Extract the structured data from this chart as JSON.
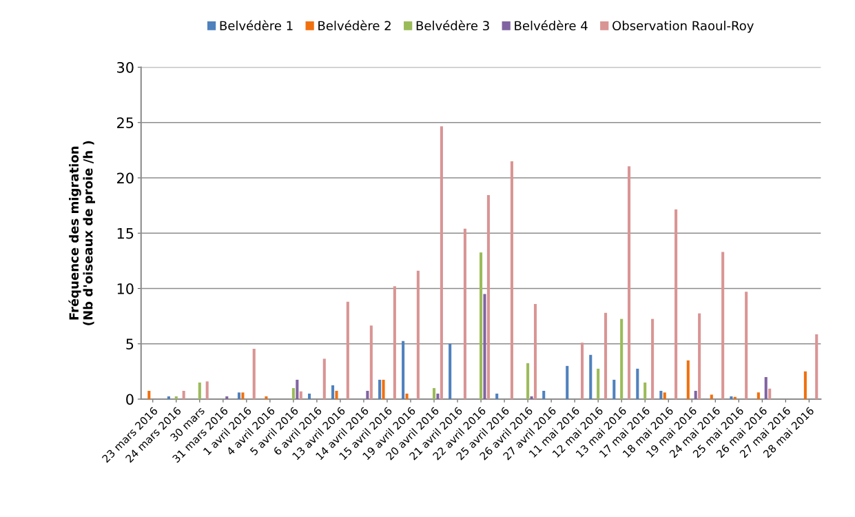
{
  "chart_data": {
    "type": "bar",
    "ylabel": "Fréquence des migration\n(Nb d'oiseaux de proie /h )",
    "categories": [
      "23 mars 2016",
      "24 mars 2016",
      "30 mars",
      "31 mars 2016",
      "1 avril 2016",
      "4 avril 2016",
      "5 avril 2016",
      "6 avril 2016",
      "13 avril 2016",
      "14 avril 2016",
      "15 avril 2016",
      "19 avril 2016",
      "20 avril 2016",
      "21 avril 2016",
      "22 avril 2016",
      "25 avril 2016",
      "26 avril 2016",
      "27 avril 2016",
      "11 mai 2016",
      "12 mai 2016",
      "13 mai 2016",
      "17 mai 2016",
      "18 mai 2016",
      "19 mai 2016",
      "24 mai 2016",
      "25 mai 2016",
      "26 mai 2016",
      "27 mai 2016",
      "28 mai 2016"
    ],
    "series": [
      {
        "name": "Belvédère 1",
        "color": "#4f81bd",
        "values": [
          0,
          0.25,
          0,
          0,
          0.6,
          0,
          0,
          0.5,
          1.25,
          0,
          1.75,
          5.25,
          0,
          5.0,
          0,
          0.5,
          0,
          0.75,
          3.0,
          4.0,
          1.75,
          2.75,
          0.75,
          0,
          0,
          0.25,
          0,
          0,
          0
        ]
      },
      {
        "name": "Belvédère 2",
        "color": "#f0700f",
        "values": [
          0.75,
          0,
          0,
          0,
          0.6,
          0.25,
          0,
          0,
          0.75,
          0,
          1.75,
          0.5,
          0,
          0,
          0,
          0,
          0,
          0,
          0,
          0,
          0,
          0,
          0.6,
          3.5,
          0.4,
          0.2,
          0.6,
          0,
          2.5
        ]
      },
      {
        "name": "Belvédère 3",
        "color": "#9bbb59",
        "values": [
          0,
          0.25,
          1.5,
          0,
          0,
          0,
          1.0,
          0,
          0,
          0,
          0,
          0,
          1.0,
          0,
          13.25,
          0,
          3.25,
          0,
          0,
          2.75,
          7.25,
          1.5,
          0,
          0,
          0,
          0,
          0,
          0,
          0
        ]
      },
      {
        "name": "Belvédère 4",
        "color": "#8064a2",
        "values": [
          0,
          0,
          0,
          0.25,
          0,
          0,
          1.75,
          0,
          0,
          0.75,
          0,
          0,
          0.5,
          0,
          9.5,
          0,
          0.25,
          0,
          0,
          0,
          0,
          0,
          0,
          0.75,
          0,
          0,
          2.0,
          0,
          0
        ]
      },
      {
        "name": "Observation Raoul-Roy",
        "color": "#d99594",
        "values": [
          0,
          0.75,
          1.6,
          0,
          4.55,
          0,
          0.7,
          3.65,
          8.8,
          6.65,
          10.2,
          11.6,
          24.65,
          15.4,
          18.45,
          21.5,
          8.6,
          0,
          5.1,
          7.8,
          21.05,
          7.25,
          17.15,
          7.75,
          13.3,
          9.7,
          0.95,
          0,
          5.85
        ]
      }
    ],
    "ylim": [
      0,
      30
    ],
    "yticks": [
      0,
      5,
      10,
      15,
      20,
      25,
      30
    ],
    "grid": "y",
    "legend": "top"
  }
}
